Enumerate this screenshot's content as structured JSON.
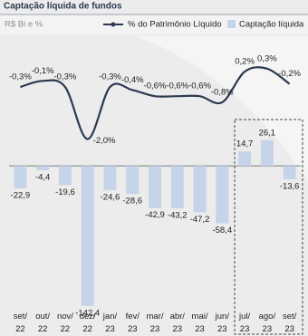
{
  "chart_data": {
    "type": "bar-line",
    "title": "Captação líquida de fundos",
    "subtitle": "R$ Bi e %",
    "categories": [
      [
        "set/",
        "22"
      ],
      [
        "out/",
        "22"
      ],
      [
        "nov/",
        "22"
      ],
      [
        "dez/",
        "22"
      ],
      [
        "jan/",
        "23"
      ],
      [
        "fev/",
        "23"
      ],
      [
        "mar/",
        "23"
      ],
      [
        "abr/",
        "23"
      ],
      [
        "mai/",
        "23"
      ],
      [
        "jun/",
        "23"
      ],
      [
        "jul/",
        "23"
      ],
      [
        "ago/",
        "23"
      ],
      [
        "set/",
        "23"
      ]
    ],
    "series": [
      {
        "name": "% do Patrimônio Líquido",
        "type": "line",
        "axis": "y2",
        "color": "#2b3950",
        "values": [
          -0.3,
          -0.1,
          -0.3,
          -2.0,
          -0.3,
          -0.4,
          -0.6,
          -0.6,
          -0.6,
          -0.8,
          0.2,
          0.3,
          -0.2
        ],
        "value_labels": [
          "-0,3%",
          "-0,1%",
          "-0,3%",
          "-2,0%",
          "-0,3%",
          "-0,4%",
          "-0,6%",
          "-0,6%",
          "-0,6%",
          "-0,8%",
          "0,2%",
          "0,3%",
          "-0,2%"
        ]
      },
      {
        "name": "Captação líquida",
        "type": "bar",
        "color": "#c6d4e9",
        "values": [
          -22.9,
          -4.4,
          -19.6,
          -142.4,
          -24.6,
          -28.6,
          -42.9,
          -43.2,
          -47.2,
          -58.4,
          14.7,
          26.1,
          -13.6
        ],
        "value_labels": [
          "-22,9",
          "-4,4",
          "-19,6",
          "-142,4",
          "-24,6",
          "-28,6",
          "-42,9",
          "-43,2",
          "-47,2",
          "-58,4",
          "14,7",
          "26,1",
          "-13,6"
        ]
      }
    ],
    "ylim": [
      -150,
      130
    ],
    "y2lim": [
      -7.7,
      1.3
    ],
    "legend": "top"
  }
}
